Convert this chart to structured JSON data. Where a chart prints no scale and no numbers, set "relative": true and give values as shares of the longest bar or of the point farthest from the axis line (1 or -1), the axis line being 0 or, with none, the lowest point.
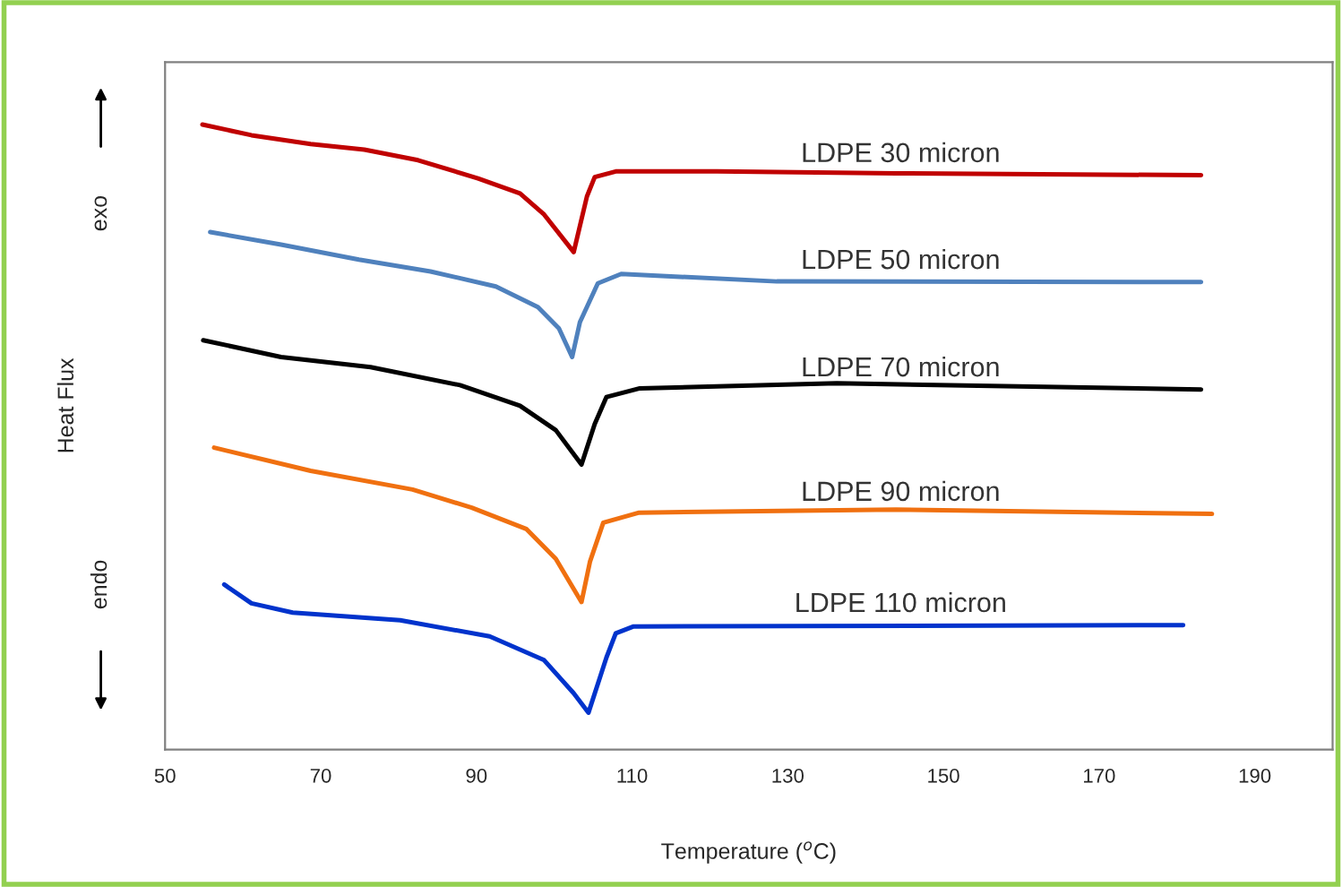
{
  "chart_data": {
    "type": "line",
    "relative": true,
    "xlabel": "Temperature ($^{o}$C)",
    "ylabel": "Heat Flux",
    "annotations": [
      "exo",
      "endo"
    ],
    "xlim": [
      50,
      200
    ],
    "xticks": [
      50,
      70,
      90,
      110,
      130,
      150,
      170,
      190
    ],
    "grid": false,
    "legend": false,
    "marker": "none",
    "line_style": "solid",
    "series": [
      {
        "name": "LDPE 30 micron",
        "color": "#c00000",
        "x": [
          54.8,
          61.1,
          68.7,
          75.6,
          82.5,
          90.2,
          95.6,
          98.7,
          102.5,
          104.2,
          105.2,
          107.9,
          120.9,
          143.9,
          183.1
        ],
        "values": [
          1.0,
          0.983,
          0.969,
          0.96,
          0.943,
          0.914,
          0.89,
          0.856,
          0.796,
          0.885,
          0.916,
          0.925,
          0.925,
          0.922,
          0.919
        ]
      },
      {
        "name": "LDPE 50 micron",
        "color": "#4f81bd",
        "x": [
          55.8,
          64.9,
          74.9,
          84.1,
          92.5,
          97.9,
          100.6,
          102.3,
          103.3,
          105.6,
          108.6,
          128.6,
          183.1
        ],
        "values": [
          0.828,
          0.808,
          0.784,
          0.765,
          0.741,
          0.708,
          0.674,
          0.628,
          0.684,
          0.746,
          0.761,
          0.749,
          0.748
        ]
      },
      {
        "name": "LDPE 70 micron",
        "color": "#000000",
        "x": [
          54.9,
          64.9,
          76.4,
          87.9,
          95.6,
          100.2,
          103.5,
          105.2,
          106.7,
          111.0,
          136.3,
          183.1
        ],
        "values": [
          0.655,
          0.628,
          0.612,
          0.583,
          0.55,
          0.511,
          0.456,
          0.521,
          0.564,
          0.578,
          0.586,
          0.576
        ]
      },
      {
        "name": "LDPE 90 micron",
        "color": "#f07010",
        "x": [
          56.3,
          68.7,
          81.8,
          89.4,
          96.4,
          100.2,
          103.5,
          104.6,
          106.3,
          110.9,
          143.9,
          184.5
        ],
        "values": [
          0.483,
          0.446,
          0.416,
          0.387,
          0.353,
          0.305,
          0.236,
          0.301,
          0.363,
          0.379,
          0.384,
          0.377
        ]
      },
      {
        "name": "LDPE 110 micron",
        "color": "#0033cc",
        "x": [
          57.6,
          61.1,
          66.4,
          80.2,
          91.7,
          98.7,
          102.5,
          104.4,
          106.7,
          107.9,
          110.2,
          180.8
        ],
        "values": [
          0.264,
          0.234,
          0.219,
          0.207,
          0.181,
          0.143,
          0.09,
          0.059,
          0.147,
          0.186,
          0.197,
          0.199
        ]
      }
    ]
  }
}
